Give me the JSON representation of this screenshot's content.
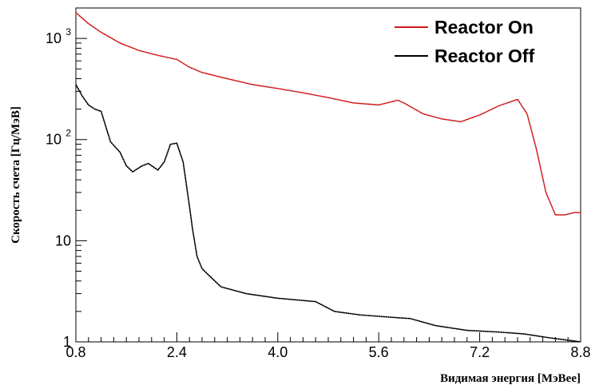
{
  "chart_data": {
    "type": "line",
    "xlabel": "Видимая энергия [МэВее]",
    "ylabel": "Скорость счета [Гц/МэВ]",
    "xlim": [
      0.8,
      8.8
    ],
    "ylim": [
      1,
      2000
    ],
    "yscale": "log",
    "grid": false,
    "legend_position": "top-right",
    "xticks": [
      "0.8",
      "2.4",
      "4.0",
      "5.6",
      "7.2",
      "8.8"
    ],
    "yticks": [
      {
        "value": 1,
        "label": "1"
      },
      {
        "value": 10,
        "label": "10"
      },
      {
        "value": 100,
        "label": "10",
        "exp": "2"
      },
      {
        "value": 1000,
        "label": "10",
        "exp": "3"
      }
    ],
    "series": [
      {
        "name": "Reactor On",
        "color": "#d11a1a",
        "x": [
          0.8,
          1.0,
          1.2,
          1.5,
          1.8,
          2.1,
          2.4,
          2.6,
          2.8,
          3.2,
          3.6,
          4.0,
          4.4,
          4.8,
          5.2,
          5.6,
          5.9,
          6.0,
          6.3,
          6.6,
          6.9,
          7.2,
          7.5,
          7.8,
          7.95,
          8.1,
          8.25,
          8.4,
          8.55,
          8.7,
          8.8
        ],
        "y": [
          1800,
          1400,
          1150,
          900,
          760,
          680,
          620,
          520,
          460,
          400,
          350,
          320,
          290,
          260,
          230,
          220,
          245,
          230,
          180,
          160,
          150,
          175,
          215,
          250,
          180,
          80,
          30,
          18,
          18,
          19,
          19
        ]
      },
      {
        "name": "Reactor Off",
        "color": "#000000",
        "x": [
          0.8,
          0.9,
          1.0,
          1.1,
          1.2,
          1.35,
          1.5,
          1.6,
          1.7,
          1.85,
          1.95,
          2.1,
          2.2,
          2.3,
          2.4,
          2.5,
          2.6,
          2.65,
          2.72,
          2.8,
          2.9,
          3.1,
          3.5,
          4.0,
          4.3,
          4.6,
          4.9,
          5.3,
          5.8,
          6.1,
          6.5,
          7.0,
          7.5,
          7.9,
          8.3,
          8.8
        ],
        "y": [
          350,
          270,
          220,
          200,
          190,
          95,
          75,
          55,
          48,
          55,
          58,
          50,
          60,
          90,
          92,
          60,
          22,
          13,
          7,
          5.3,
          4.6,
          3.5,
          3.0,
          2.7,
          2.6,
          2.5,
          2.0,
          1.85,
          1.75,
          1.7,
          1.45,
          1.3,
          1.25,
          1.2,
          1.1,
          1.0
        ]
      }
    ]
  }
}
